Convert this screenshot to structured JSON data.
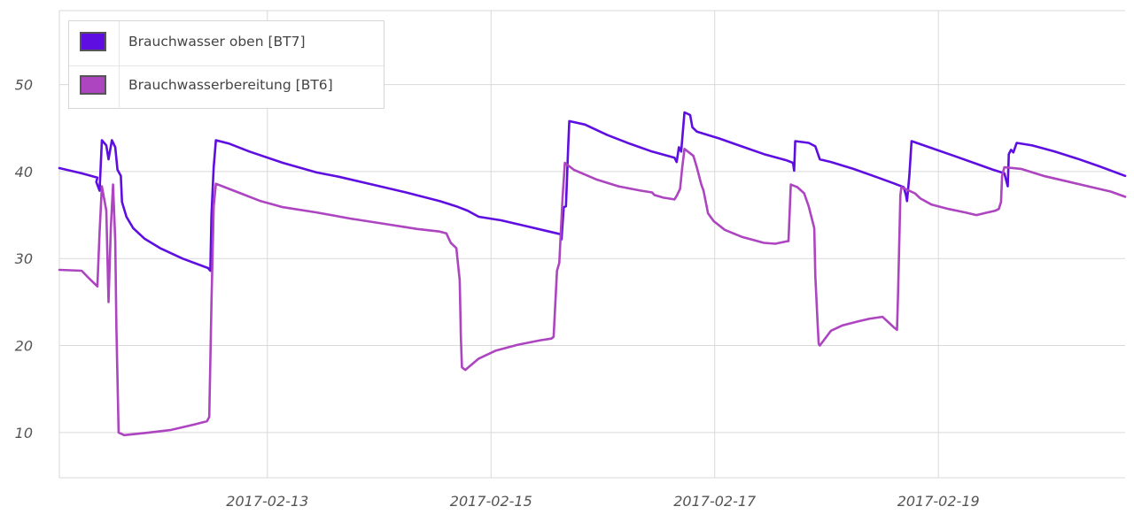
{
  "colors": {
    "series_1": "#5e0ee0",
    "series_2": "#ad44c0",
    "grid": "#d9d9d9",
    "axis_text": "#545454"
  },
  "chart_data": {
    "type": "line",
    "title": "",
    "xlabel": "",
    "ylabel": "",
    "xlim": [
      0.0,
      9.53
    ],
    "ylim": [
      4.8,
      58.5
    ],
    "x_axis_origin": "2017-02-11 (x values in days)",
    "yticks": [
      10,
      20,
      30,
      40,
      50
    ],
    "xticks": [
      {
        "x": 1.86,
        "label": "2017-02-13"
      },
      {
        "x": 3.86,
        "label": "2017-02-15"
      },
      {
        "x": 5.86,
        "label": "2017-02-17"
      },
      {
        "x": 7.86,
        "label": "2017-02-19"
      }
    ],
    "grid": true,
    "legend_position": "top-left",
    "series": [
      {
        "name": "Brauchwasser oben [BT7]",
        "color": "#5e0ee0",
        "points": [
          [
            0.0,
            40.4
          ],
          [
            0.2,
            39.8
          ],
          [
            0.34,
            39.3
          ],
          [
            0.33,
            38.8
          ],
          [
            0.36,
            37.8
          ],
          [
            0.38,
            43.6
          ],
          [
            0.42,
            43.0
          ],
          [
            0.44,
            41.4
          ],
          [
            0.47,
            43.6
          ],
          [
            0.5,
            42.8
          ],
          [
            0.52,
            40.2
          ],
          [
            0.55,
            39.5
          ],
          [
            0.56,
            36.5
          ],
          [
            0.6,
            34.8
          ],
          [
            0.66,
            33.5
          ],
          [
            0.76,
            32.3
          ],
          [
            0.9,
            31.2
          ],
          [
            1.1,
            30.0
          ],
          [
            1.33,
            28.9
          ],
          [
            1.35,
            28.6
          ],
          [
            1.36,
            35.0
          ],
          [
            1.38,
            40.5
          ],
          [
            1.4,
            43.6
          ],
          [
            1.52,
            43.2
          ],
          [
            1.7,
            42.3
          ],
          [
            2.0,
            41.0
          ],
          [
            2.3,
            39.9
          ],
          [
            2.5,
            39.4
          ],
          [
            2.8,
            38.5
          ],
          [
            3.1,
            37.6
          ],
          [
            3.4,
            36.6
          ],
          [
            3.55,
            36.0
          ],
          [
            3.65,
            35.5
          ],
          [
            3.75,
            34.8
          ],
          [
            3.95,
            34.4
          ],
          [
            4.15,
            33.8
          ],
          [
            4.35,
            33.2
          ],
          [
            4.48,
            32.8
          ],
          [
            4.49,
            32.2
          ],
          [
            4.51,
            35.9
          ],
          [
            4.53,
            36.0
          ],
          [
            4.55,
            43.0
          ],
          [
            4.56,
            45.8
          ],
          [
            4.7,
            45.4
          ],
          [
            4.9,
            44.2
          ],
          [
            5.1,
            43.2
          ],
          [
            5.3,
            42.3
          ],
          [
            5.5,
            41.6
          ],
          [
            5.52,
            41.1
          ],
          [
            5.54,
            42.8
          ],
          [
            5.56,
            42.3
          ],
          [
            5.59,
            46.8
          ],
          [
            5.64,
            46.5
          ],
          [
            5.66,
            45.1
          ],
          [
            5.7,
            44.6
          ],
          [
            5.9,
            43.8
          ],
          [
            6.1,
            42.9
          ],
          [
            6.3,
            42.0
          ],
          [
            6.5,
            41.3
          ],
          [
            6.56,
            41.0
          ],
          [
            6.57,
            40.1
          ],
          [
            6.58,
            43.5
          ],
          [
            6.7,
            43.3
          ],
          [
            6.76,
            42.9
          ],
          [
            6.8,
            41.4
          ],
          [
            6.9,
            41.1
          ],
          [
            7.1,
            40.3
          ],
          [
            7.3,
            39.4
          ],
          [
            7.45,
            38.7
          ],
          [
            7.55,
            38.2
          ],
          [
            7.57,
            37.3
          ],
          [
            7.58,
            36.6
          ],
          [
            7.6,
            39.5
          ],
          [
            7.62,
            43.5
          ],
          [
            7.8,
            42.7
          ],
          [
            8.0,
            41.8
          ],
          [
            8.2,
            40.9
          ],
          [
            8.35,
            40.2
          ],
          [
            8.45,
            39.8
          ],
          [
            8.47,
            38.8
          ],
          [
            8.48,
            38.3
          ],
          [
            8.49,
            42.0
          ],
          [
            8.51,
            42.5
          ],
          [
            8.53,
            42.2
          ],
          [
            8.56,
            43.3
          ],
          [
            8.7,
            43.0
          ],
          [
            8.9,
            42.3
          ],
          [
            9.1,
            41.5
          ],
          [
            9.3,
            40.6
          ],
          [
            9.53,
            39.5
          ]
        ]
      },
      {
        "name": "Brauchwasserbereitung [BT6]",
        "color": "#ad44c0",
        "points": [
          [
            0.0,
            28.7
          ],
          [
            0.2,
            28.6
          ],
          [
            0.26,
            27.8
          ],
          [
            0.34,
            26.8
          ],
          [
            0.36,
            33.0
          ],
          [
            0.38,
            38.3
          ],
          [
            0.42,
            35.5
          ],
          [
            0.44,
            25.0
          ],
          [
            0.46,
            33.5
          ],
          [
            0.48,
            38.5
          ],
          [
            0.5,
            32.0
          ],
          [
            0.51,
            22.0
          ],
          [
            0.53,
            10.0
          ],
          [
            0.58,
            9.7
          ],
          [
            0.8,
            10.0
          ],
          [
            1.0,
            10.3
          ],
          [
            1.2,
            10.9
          ],
          [
            1.32,
            11.3
          ],
          [
            1.34,
            11.8
          ],
          [
            1.36,
            25.0
          ],
          [
            1.38,
            36.0
          ],
          [
            1.4,
            38.6
          ],
          [
            1.6,
            37.6
          ],
          [
            1.8,
            36.6
          ],
          [
            2.0,
            35.9
          ],
          [
            2.3,
            35.3
          ],
          [
            2.6,
            34.6
          ],
          [
            2.9,
            34.0
          ],
          [
            3.2,
            33.4
          ],
          [
            3.4,
            33.1
          ],
          [
            3.46,
            32.9
          ],
          [
            3.5,
            31.8
          ],
          [
            3.55,
            31.2
          ],
          [
            3.58,
            27.5
          ],
          [
            3.59,
            21.0
          ],
          [
            3.6,
            17.5
          ],
          [
            3.63,
            17.2
          ],
          [
            3.75,
            18.5
          ],
          [
            3.9,
            19.4
          ],
          [
            4.1,
            20.1
          ],
          [
            4.3,
            20.6
          ],
          [
            4.4,
            20.8
          ],
          [
            4.42,
            21.0
          ],
          [
            4.45,
            28.6
          ],
          [
            4.47,
            29.5
          ],
          [
            4.5,
            37.0
          ],
          [
            4.52,
            41.0
          ],
          [
            4.6,
            40.2
          ],
          [
            4.8,
            39.1
          ],
          [
            5.0,
            38.3
          ],
          [
            5.2,
            37.8
          ],
          [
            5.3,
            37.6
          ],
          [
            5.32,
            37.3
          ],
          [
            5.4,
            37.0
          ],
          [
            5.5,
            36.8
          ],
          [
            5.52,
            37.2
          ],
          [
            5.55,
            38.0
          ],
          [
            5.57,
            40.5
          ],
          [
            5.59,
            42.6
          ],
          [
            5.67,
            41.8
          ],
          [
            5.7,
            40.5
          ],
          [
            5.74,
            38.5
          ],
          [
            5.76,
            37.8
          ],
          [
            5.8,
            35.2
          ],
          [
            5.85,
            34.3
          ],
          [
            5.95,
            33.3
          ],
          [
            6.1,
            32.5
          ],
          [
            6.3,
            31.8
          ],
          [
            6.4,
            31.7
          ],
          [
            6.51,
            32.0
          ],
          [
            6.52,
            32.0
          ],
          [
            6.54,
            38.5
          ],
          [
            6.6,
            38.2
          ],
          [
            6.66,
            37.5
          ],
          [
            6.7,
            36.0
          ],
          [
            6.75,
            33.5
          ],
          [
            6.76,
            28.0
          ],
          [
            6.78,
            22.5
          ],
          [
            6.79,
            20.2
          ],
          [
            6.8,
            20.0
          ],
          [
            6.9,
            21.7
          ],
          [
            7.0,
            22.3
          ],
          [
            7.15,
            22.8
          ],
          [
            7.25,
            23.1
          ],
          [
            7.36,
            23.3
          ],
          [
            7.42,
            22.6
          ],
          [
            7.47,
            22.0
          ],
          [
            7.49,
            21.8
          ],
          [
            7.5,
            26.0
          ],
          [
            7.52,
            37.3
          ],
          [
            7.53,
            38.2
          ],
          [
            7.65,
            37.5
          ],
          [
            7.7,
            36.9
          ],
          [
            7.8,
            36.2
          ],
          [
            7.95,
            35.7
          ],
          [
            8.1,
            35.3
          ],
          [
            8.2,
            35.0
          ],
          [
            8.3,
            35.3
          ],
          [
            8.37,
            35.5
          ],
          [
            8.4,
            35.7
          ],
          [
            8.42,
            36.5
          ],
          [
            8.43,
            39.5
          ],
          [
            8.45,
            40.5
          ],
          [
            8.6,
            40.3
          ],
          [
            8.8,
            39.5
          ],
          [
            9.0,
            38.9
          ],
          [
            9.2,
            38.3
          ],
          [
            9.4,
            37.7
          ],
          [
            9.53,
            37.1
          ]
        ]
      }
    ]
  }
}
